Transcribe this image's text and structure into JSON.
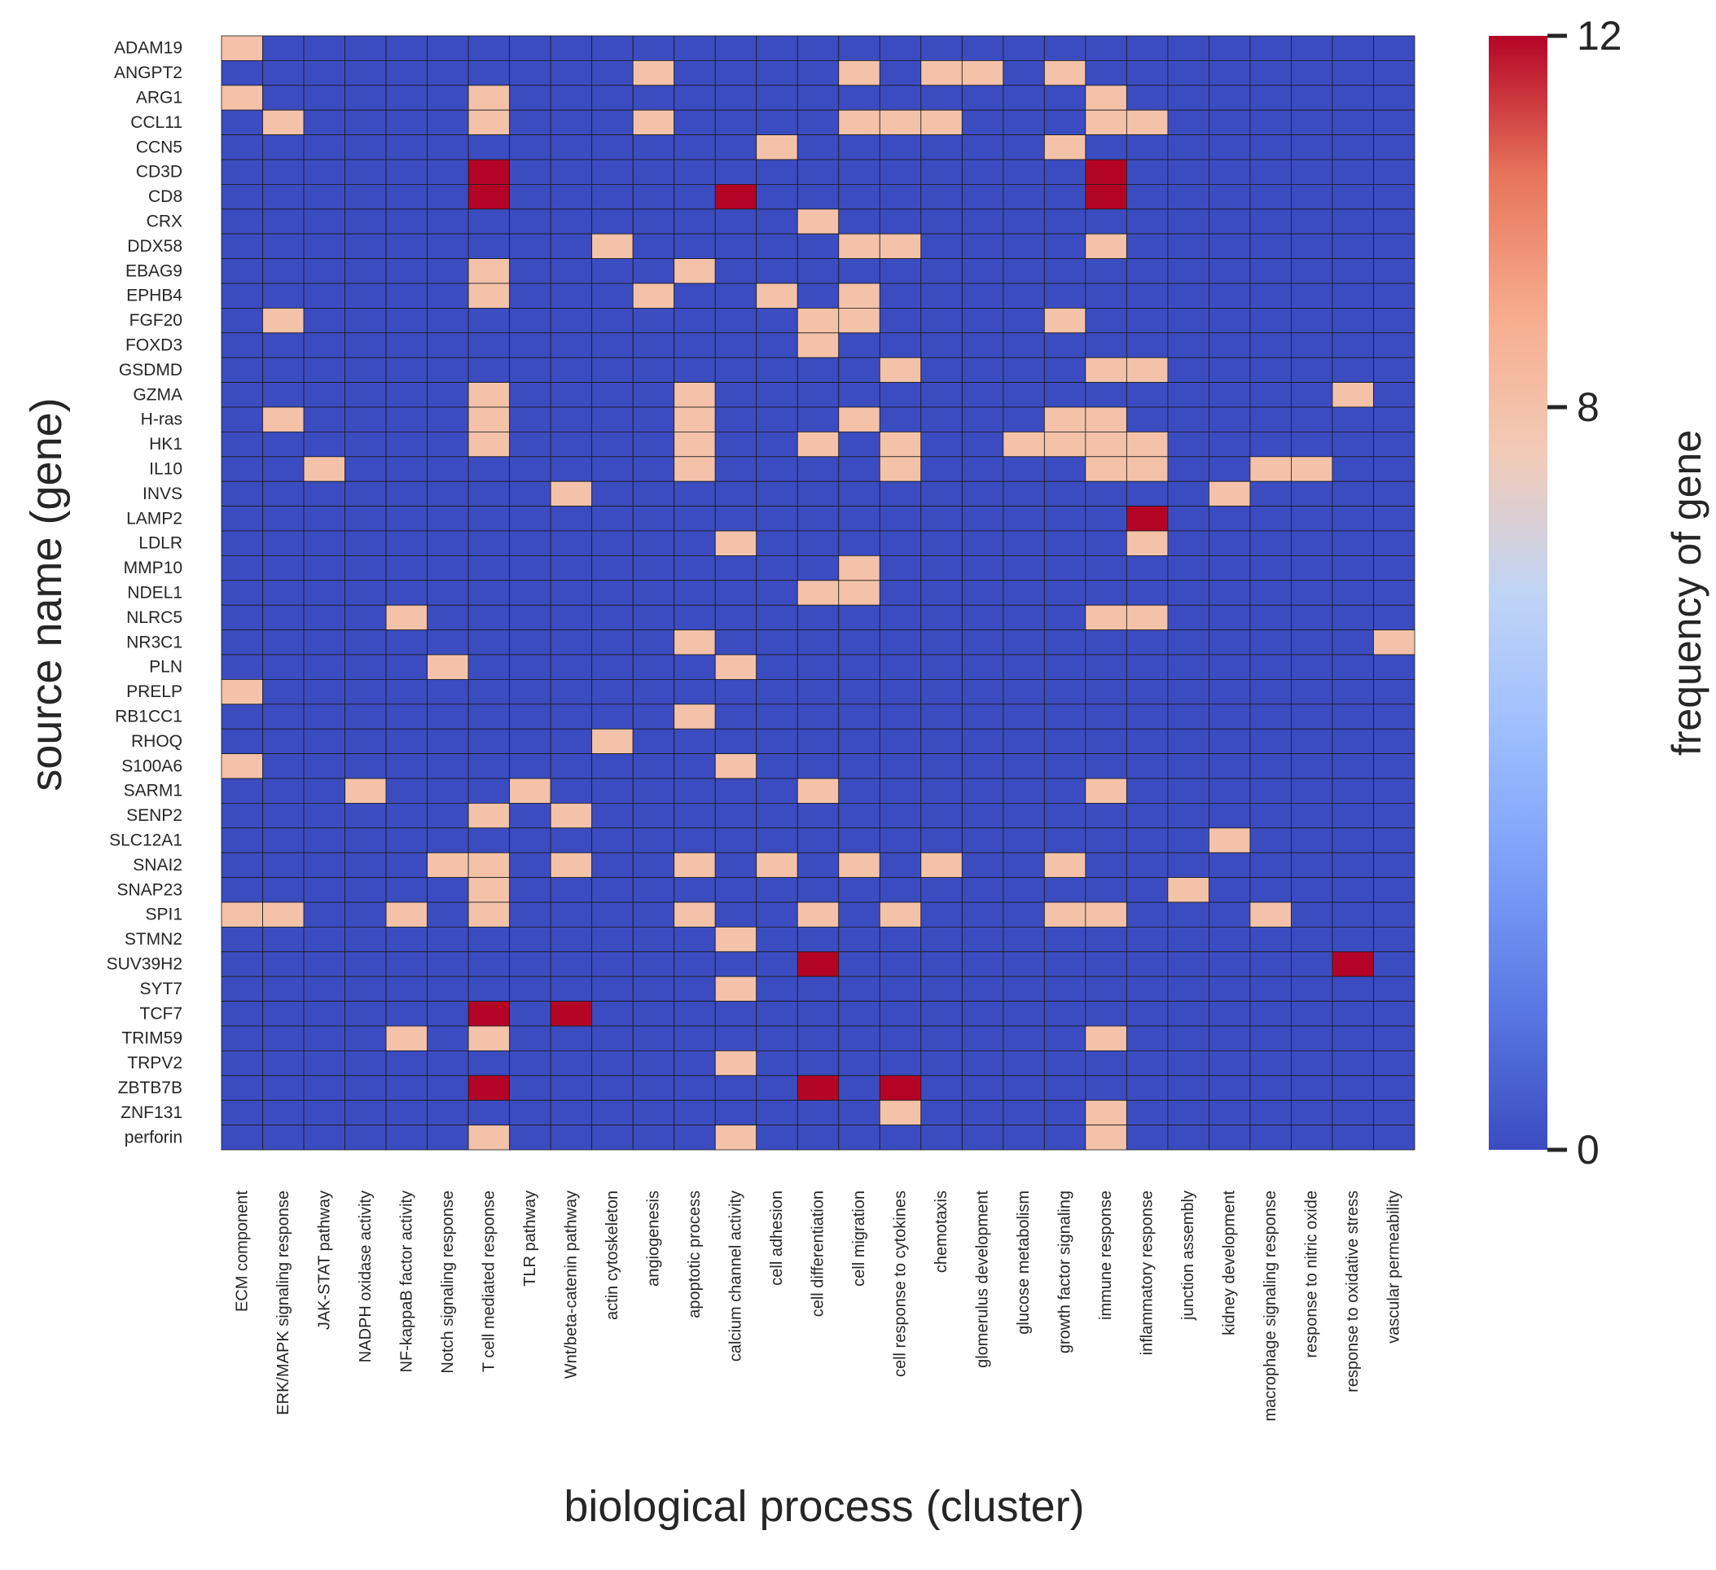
{
  "chart_data": {
    "type": "heatmap",
    "xlabel": "biological process (cluster)",
    "ylabel": "source name (gene)",
    "colorbar": {
      "label": "frequency of gene",
      "ticks": [
        0,
        8,
        12
      ],
      "min": 0,
      "max": 12,
      "colormap": "coolwarm"
    },
    "colors": {
      "low": "#3b4cc0",
      "mid": "#dddddd",
      "high": "#b40426",
      "grid": "#1a1a1a"
    },
    "rows": [
      "ADAM19",
      "ANGPT2",
      "ARG1",
      "CCL11",
      "CCN5",
      "CD3D",
      "CD8",
      "CRX",
      "DDX58",
      "EBAG9",
      "EPHB4",
      "FGF20",
      "FOXD3",
      "GSDMD",
      "GZMA",
      "H-ras",
      "HK1",
      "IL10",
      "INVS",
      "LAMP2",
      "LDLR",
      "MMP10",
      "NDEL1",
      "NLRC5",
      "NR3C1",
      "PLN",
      "PRELP",
      "RB1CC1",
      "RHOQ",
      "S100A6",
      "SARM1",
      "SENP2",
      "SLC12A1",
      "SNAI2",
      "SNAP23",
      "SPI1",
      "STMN2",
      "SUV39H2",
      "SYT7",
      "TCF7",
      "TRIM59",
      "TRPV2",
      "ZBTB7B",
      "ZNF131",
      "perforin"
    ],
    "columns": [
      "ECM component",
      "ERK/MAPK signaling response",
      "JAK-STAT pathway",
      "NADPH oxidase activity",
      "NF-kappaB factor activity",
      "Notch signaling response",
      "T cell mediated response",
      "TLR pathway",
      "Wnt/beta-catenin pathway",
      "actin cytoskeleton",
      "angiogenesis",
      "apoptotic process",
      "calcium channel activity",
      "cell adhesion",
      "cell differentiation",
      "cell migration",
      "cell response to cytokines",
      "chemotaxis",
      "glomerulus development",
      "glucose metabolism",
      "growth factor signaling",
      "immune response",
      "inflammatory response",
      "junction assembly",
      "kidney development",
      "macrophage signaling response",
      "response to nitric oxide",
      "response to oxidative stress",
      "vascular permeability"
    ],
    "values": [
      [
        8,
        0,
        0,
        0,
        0,
        0,
        0,
        0,
        0,
        0,
        0,
        0,
        0,
        0,
        0,
        0,
        0,
        0,
        0,
        0,
        0,
        0,
        0,
        0,
        0,
        0,
        0,
        0,
        0
      ],
      [
        0,
        0,
        0,
        0,
        0,
        0,
        0,
        0,
        0,
        0,
        8,
        0,
        0,
        0,
        0,
        8,
        0,
        8,
        8,
        0,
        8,
        0,
        0,
        0,
        0,
        0,
        0,
        0,
        0
      ],
      [
        8,
        0,
        0,
        0,
        0,
        0,
        8,
        0,
        0,
        0,
        0,
        0,
        0,
        0,
        0,
        0,
        0,
        0,
        0,
        0,
        0,
        8,
        0,
        0,
        0,
        0,
        0,
        0,
        0
      ],
      [
        0,
        8,
        0,
        0,
        0,
        0,
        8,
        0,
        0,
        0,
        8,
        0,
        0,
        0,
        0,
        8,
        8,
        8,
        0,
        0,
        0,
        8,
        8,
        0,
        0,
        0,
        0,
        0,
        0
      ],
      [
        0,
        0,
        0,
        0,
        0,
        0,
        0,
        0,
        0,
        0,
        0,
        0,
        0,
        8,
        0,
        0,
        0,
        0,
        0,
        0,
        8,
        0,
        0,
        0,
        0,
        0,
        0,
        0,
        0
      ],
      [
        0,
        0,
        0,
        0,
        0,
        0,
        12,
        0,
        0,
        0,
        0,
        0,
        0,
        0,
        0,
        0,
        0,
        0,
        0,
        0,
        0,
        12,
        0,
        0,
        0,
        0,
        0,
        0,
        0
      ],
      [
        0,
        0,
        0,
        0,
        0,
        0,
        12,
        0,
        0,
        0,
        0,
        0,
        12,
        0,
        0,
        0,
        0,
        0,
        0,
        0,
        0,
        12,
        0,
        0,
        0,
        0,
        0,
        0,
        0
      ],
      [
        0,
        0,
        0,
        0,
        0,
        0,
        0,
        0,
        0,
        0,
        0,
        0,
        0,
        0,
        8,
        0,
        0,
        0,
        0,
        0,
        0,
        0,
        0,
        0,
        0,
        0,
        0,
        0,
        0
      ],
      [
        0,
        0,
        0,
        0,
        0,
        0,
        0,
        0,
        0,
        8,
        0,
        0,
        0,
        0,
        0,
        8,
        8,
        0,
        0,
        0,
        0,
        8,
        0,
        0,
        0,
        0,
        0,
        0,
        0
      ],
      [
        0,
        0,
        0,
        0,
        0,
        0,
        8,
        0,
        0,
        0,
        0,
        8,
        0,
        0,
        0,
        0,
        0,
        0,
        0,
        0,
        0,
        0,
        0,
        0,
        0,
        0,
        0,
        0,
        0
      ],
      [
        0,
        0,
        0,
        0,
        0,
        0,
        8,
        0,
        0,
        0,
        8,
        0,
        0,
        8,
        0,
        8,
        0,
        0,
        0,
        0,
        0,
        0,
        0,
        0,
        0,
        0,
        0,
        0,
        0
      ],
      [
        0,
        8,
        0,
        0,
        0,
        0,
        0,
        0,
        0,
        0,
        0,
        0,
        0,
        0,
        8,
        8,
        0,
        0,
        0,
        0,
        8,
        0,
        0,
        0,
        0,
        0,
        0,
        0,
        0
      ],
      [
        0,
        0,
        0,
        0,
        0,
        0,
        0,
        0,
        0,
        0,
        0,
        0,
        0,
        0,
        8,
        0,
        0,
        0,
        0,
        0,
        0,
        0,
        0,
        0,
        0,
        0,
        0,
        0,
        0
      ],
      [
        0,
        0,
        0,
        0,
        0,
        0,
        0,
        0,
        0,
        0,
        0,
        0,
        0,
        0,
        0,
        0,
        8,
        0,
        0,
        0,
        0,
        8,
        8,
        0,
        0,
        0,
        0,
        0,
        0
      ],
      [
        0,
        0,
        0,
        0,
        0,
        0,
        8,
        0,
        0,
        0,
        0,
        8,
        0,
        0,
        0,
        0,
        0,
        0,
        0,
        0,
        0,
        0,
        0,
        0,
        0,
        0,
        0,
        8,
        0
      ],
      [
        0,
        8,
        0,
        0,
        0,
        0,
        8,
        0,
        0,
        0,
        0,
        8,
        0,
        0,
        0,
        8,
        0,
        0,
        0,
        0,
        8,
        8,
        0,
        0,
        0,
        0,
        0,
        0,
        0
      ],
      [
        0,
        0,
        0,
        0,
        0,
        0,
        8,
        0,
        0,
        0,
        0,
        8,
        0,
        0,
        8,
        0,
        8,
        0,
        0,
        8,
        8,
        8,
        8,
        0,
        0,
        0,
        0,
        0,
        0
      ],
      [
        0,
        0,
        8,
        0,
        0,
        0,
        0,
        0,
        0,
        0,
        0,
        8,
        0,
        0,
        0,
        0,
        8,
        0,
        0,
        0,
        0,
        8,
        8,
        0,
        0,
        8,
        8,
        0,
        0
      ],
      [
        0,
        0,
        0,
        0,
        0,
        0,
        0,
        0,
        8,
        0,
        0,
        0,
        0,
        0,
        0,
        0,
        0,
        0,
        0,
        0,
        0,
        0,
        0,
        0,
        8,
        0,
        0,
        0,
        0
      ],
      [
        0,
        0,
        0,
        0,
        0,
        0,
        0,
        0,
        0,
        0,
        0,
        0,
        0,
        0,
        0,
        0,
        0,
        0,
        0,
        0,
        0,
        0,
        12,
        0,
        0,
        0,
        0,
        0,
        0
      ],
      [
        0,
        0,
        0,
        0,
        0,
        0,
        0,
        0,
        0,
        0,
        0,
        0,
        8,
        0,
        0,
        0,
        0,
        0,
        0,
        0,
        0,
        0,
        8,
        0,
        0,
        0,
        0,
        0,
        0
      ],
      [
        0,
        0,
        0,
        0,
        0,
        0,
        0,
        0,
        0,
        0,
        0,
        0,
        0,
        0,
        0,
        8,
        0,
        0,
        0,
        0,
        0,
        0,
        0,
        0,
        0,
        0,
        0,
        0,
        0
      ],
      [
        0,
        0,
        0,
        0,
        0,
        0,
        0,
        0,
        0,
        0,
        0,
        0,
        0,
        0,
        8,
        8,
        0,
        0,
        0,
        0,
        0,
        0,
        0,
        0,
        0,
        0,
        0,
        0,
        0
      ],
      [
        0,
        0,
        0,
        0,
        8,
        0,
        0,
        0,
        0,
        0,
        0,
        0,
        0,
        0,
        0,
        0,
        0,
        0,
        0,
        0,
        0,
        8,
        8,
        0,
        0,
        0,
        0,
        0,
        0
      ],
      [
        0,
        0,
        0,
        0,
        0,
        0,
        0,
        0,
        0,
        0,
        0,
        8,
        0,
        0,
        0,
        0,
        0,
        0,
        0,
        0,
        0,
        0,
        0,
        0,
        0,
        0,
        0,
        0,
        8
      ],
      [
        0,
        0,
        0,
        0,
        0,
        8,
        0,
        0,
        0,
        0,
        0,
        0,
        8,
        0,
        0,
        0,
        0,
        0,
        0,
        0,
        0,
        0,
        0,
        0,
        0,
        0,
        0,
        0,
        0
      ],
      [
        8,
        0,
        0,
        0,
        0,
        0,
        0,
        0,
        0,
        0,
        0,
        0,
        0,
        0,
        0,
        0,
        0,
        0,
        0,
        0,
        0,
        0,
        0,
        0,
        0,
        0,
        0,
        0,
        0
      ],
      [
        0,
        0,
        0,
        0,
        0,
        0,
        0,
        0,
        0,
        0,
        0,
        8,
        0,
        0,
        0,
        0,
        0,
        0,
        0,
        0,
        0,
        0,
        0,
        0,
        0,
        0,
        0,
        0,
        0
      ],
      [
        0,
        0,
        0,
        0,
        0,
        0,
        0,
        0,
        0,
        8,
        0,
        0,
        0,
        0,
        0,
        0,
        0,
        0,
        0,
        0,
        0,
        0,
        0,
        0,
        0,
        0,
        0,
        0,
        0
      ],
      [
        8,
        0,
        0,
        0,
        0,
        0,
        0,
        0,
        0,
        0,
        0,
        0,
        8,
        0,
        0,
        0,
        0,
        0,
        0,
        0,
        0,
        0,
        0,
        0,
        0,
        0,
        0,
        0,
        0
      ],
      [
        0,
        0,
        0,
        8,
        0,
        0,
        0,
        8,
        0,
        0,
        0,
        0,
        0,
        0,
        8,
        0,
        0,
        0,
        0,
        0,
        0,
        8,
        0,
        0,
        0,
        0,
        0,
        0,
        0
      ],
      [
        0,
        0,
        0,
        0,
        0,
        0,
        8,
        0,
        8,
        0,
        0,
        0,
        0,
        0,
        0,
        0,
        0,
        0,
        0,
        0,
        0,
        0,
        0,
        0,
        0,
        0,
        0,
        0,
        0
      ],
      [
        0,
        0,
        0,
        0,
        0,
        0,
        0,
        0,
        0,
        0,
        0,
        0,
        0,
        0,
        0,
        0,
        0,
        0,
        0,
        0,
        0,
        0,
        0,
        0,
        8,
        0,
        0,
        0,
        0
      ],
      [
        0,
        0,
        0,
        0,
        0,
        8,
        8,
        0,
        8,
        0,
        0,
        8,
        0,
        8,
        0,
        8,
        0,
        8,
        0,
        0,
        8,
        0,
        0,
        0,
        0,
        0,
        0,
        0,
        0
      ],
      [
        0,
        0,
        0,
        0,
        0,
        0,
        8,
        0,
        0,
        0,
        0,
        0,
        0,
        0,
        0,
        0,
        0,
        0,
        0,
        0,
        0,
        0,
        0,
        8,
        0,
        0,
        0,
        0,
        0
      ],
      [
        8,
        8,
        0,
        0,
        8,
        0,
        8,
        0,
        0,
        0,
        0,
        8,
        0,
        0,
        8,
        0,
        8,
        0,
        0,
        0,
        8,
        8,
        0,
        0,
        0,
        8,
        0,
        0,
        0
      ],
      [
        0,
        0,
        0,
        0,
        0,
        0,
        0,
        0,
        0,
        0,
        0,
        0,
        8,
        0,
        0,
        0,
        0,
        0,
        0,
        0,
        0,
        0,
        0,
        0,
        0,
        0,
        0,
        0,
        0
      ],
      [
        0,
        0,
        0,
        0,
        0,
        0,
        0,
        0,
        0,
        0,
        0,
        0,
        0,
        0,
        12,
        0,
        0,
        0,
        0,
        0,
        0,
        0,
        0,
        0,
        0,
        0,
        0,
        12,
        0
      ],
      [
        0,
        0,
        0,
        0,
        0,
        0,
        0,
        0,
        0,
        0,
        0,
        0,
        8,
        0,
        0,
        0,
        0,
        0,
        0,
        0,
        0,
        0,
        0,
        0,
        0,
        0,
        0,
        0,
        0
      ],
      [
        0,
        0,
        0,
        0,
        0,
        0,
        12,
        0,
        12,
        0,
        0,
        0,
        0,
        0,
        0,
        0,
        0,
        0,
        0,
        0,
        0,
        0,
        0,
        0,
        0,
        0,
        0,
        0,
        0
      ],
      [
        0,
        0,
        0,
        0,
        8,
        0,
        8,
        0,
        0,
        0,
        0,
        0,
        0,
        0,
        0,
        0,
        0,
        0,
        0,
        0,
        0,
        8,
        0,
        0,
        0,
        0,
        0,
        0,
        0
      ],
      [
        0,
        0,
        0,
        0,
        0,
        0,
        0,
        0,
        0,
        0,
        0,
        0,
        8,
        0,
        0,
        0,
        0,
        0,
        0,
        0,
        0,
        0,
        0,
        0,
        0,
        0,
        0,
        0,
        0
      ],
      [
        0,
        0,
        0,
        0,
        0,
        0,
        12,
        0,
        0,
        0,
        0,
        0,
        0,
        0,
        12,
        0,
        12,
        0,
        0,
        0,
        0,
        0,
        0,
        0,
        0,
        0,
        0,
        0,
        0
      ],
      [
        0,
        0,
        0,
        0,
        0,
        0,
        0,
        0,
        0,
        0,
        0,
        0,
        0,
        0,
        0,
        0,
        8,
        0,
        0,
        0,
        0,
        8,
        0,
        0,
        0,
        0,
        0,
        0,
        0
      ],
      [
        0,
        0,
        0,
        0,
        0,
        0,
        8,
        0,
        0,
        0,
        0,
        0,
        8,
        0,
        0,
        0,
        0,
        0,
        0,
        0,
        0,
        8,
        0,
        0,
        0,
        0,
        0,
        0,
        0
      ]
    ]
  }
}
